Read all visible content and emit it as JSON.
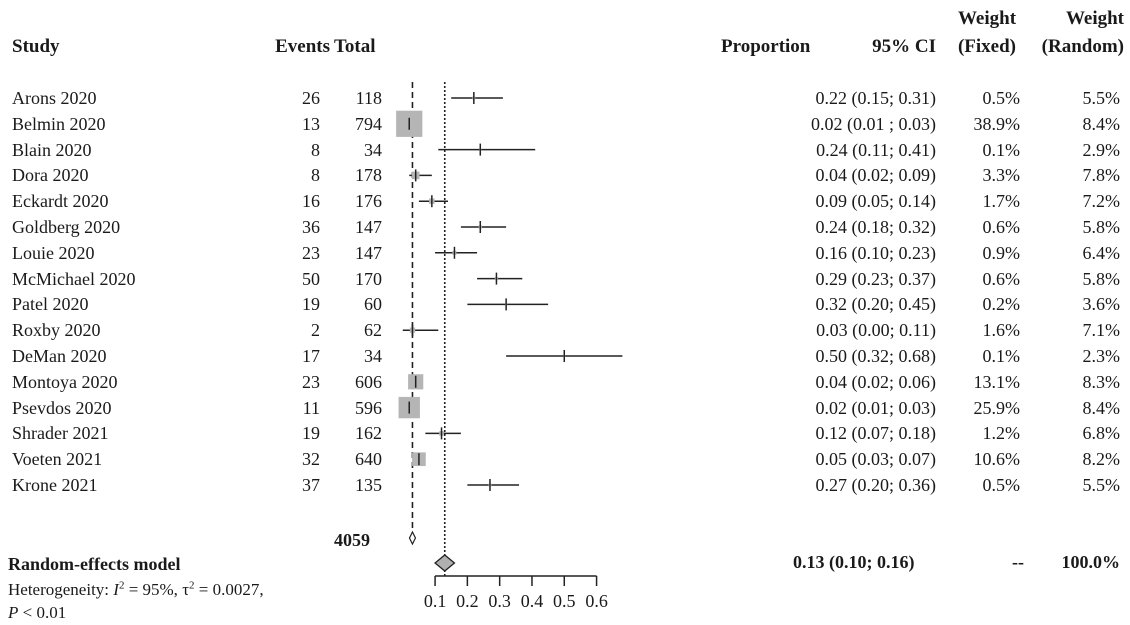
{
  "headers": {
    "study": "Study",
    "events": "Events",
    "total": "Total",
    "proportion": "Proportion",
    "ci": "95% CI",
    "weight_fixed_1": "Weight",
    "weight_fixed_2": "(Fixed)",
    "weight_random_1": "Weight",
    "weight_random_2": "(Random)"
  },
  "grand_total": "4059",
  "summary": {
    "label": "Random-effects model",
    "ci_text": "0.13 (0.10; 0.16)",
    "weight_fixed": "--",
    "weight_random": "100.0%",
    "heterogeneity_prefix": "Heterogeneity: ",
    "i2_symbol": "I",
    "i2_sup": "2",
    "i2_value": " = 95%, ",
    "tau_symbol": "τ",
    "tau_sup": "2",
    "tau_value": " = 0.0027,",
    "p_symbol": "P",
    "p_value": " < 0.01"
  },
  "chart_data": {
    "type": "forest",
    "axis": {
      "ticks": [
        "0.1",
        "0.2",
        "0.3",
        "0.4",
        "0.5",
        "0.6"
      ],
      "range": [
        0.1,
        0.6
      ]
    },
    "fixed_estimate": 0.03,
    "random_estimate": 0.13,
    "pooled": {
      "estimate": 0.13,
      "lower": 0.1,
      "upper": 0.16
    },
    "studies": [
      {
        "study": "Arons 2020",
        "events": "26",
        "total": "118",
        "ci_text": "0.22 (0.15; 0.31)",
        "wf": "0.5%",
        "wr": "5.5%",
        "est": 0.22,
        "lo": 0.15,
        "hi": 0.31,
        "wfn": 0.5
      },
      {
        "study": "Belmin 2020",
        "events": "13",
        "total": "794",
        "ci_text": "0.02 (0.01 ; 0.03)",
        "wf": "38.9%",
        "wr": "8.4%",
        "est": 0.02,
        "lo": 0.01,
        "hi": 0.03,
        "wfn": 38.9
      },
      {
        "study": "Blain 2020",
        "events": "8",
        "total": "34",
        "ci_text": "0.24 (0.11; 0.41)",
        "wf": "0.1%",
        "wr": "2.9%",
        "est": 0.24,
        "lo": 0.11,
        "hi": 0.41,
        "wfn": 0.1
      },
      {
        "study": "Dora 2020",
        "events": "8",
        "total": "178",
        "ci_text": "0.04 (0.02; 0.09)",
        "wf": "3.3%",
        "wr": "7.8%",
        "est": 0.04,
        "lo": 0.02,
        "hi": 0.09,
        "wfn": 3.3
      },
      {
        "study": "Eckardt 2020",
        "events": "16",
        "total": "176",
        "ci_text": "0.09 (0.05; 0.14)",
        "wf": "1.7%",
        "wr": "7.2%",
        "est": 0.09,
        "lo": 0.05,
        "hi": 0.14,
        "wfn": 1.7
      },
      {
        "study": "Goldberg 2020",
        "events": "36",
        "total": "147",
        "ci_text": "0.24 (0.18; 0.32)",
        "wf": "0.6%",
        "wr": "5.8%",
        "est": 0.24,
        "lo": 0.18,
        "hi": 0.32,
        "wfn": 0.6
      },
      {
        "study": "Louie 2020",
        "events": "23",
        "total": "147",
        "ci_text": "0.16 (0.10; 0.23)",
        "wf": "0.9%",
        "wr": "6.4%",
        "est": 0.16,
        "lo": 0.1,
        "hi": 0.23,
        "wfn": 0.9
      },
      {
        "study": "McMichael 2020",
        "events": "50",
        "total": "170",
        "ci_text": "0.29 (0.23; 0.37)",
        "wf": "0.6%",
        "wr": "5.8%",
        "est": 0.29,
        "lo": 0.23,
        "hi": 0.37,
        "wfn": 0.6
      },
      {
        "study": "Patel 2020",
        "events": "19",
        "total": "60",
        "ci_text": "0.32 (0.20; 0.45)",
        "wf": "0.2%",
        "wr": "3.6%",
        "est": 0.32,
        "lo": 0.2,
        "hi": 0.45,
        "wfn": 0.2
      },
      {
        "study": "Roxby 2020",
        "events": "2",
        "total": "62",
        "ci_text": "0.03 (0.00; 0.11)",
        "wf": "1.6%",
        "wr": "7.1%",
        "est": 0.03,
        "lo": 0.0,
        "hi": 0.11,
        "wfn": 1.6
      },
      {
        "study": "DeMan 2020",
        "events": "17",
        "total": "34",
        "ci_text": "0.50 (0.32; 0.68)",
        "wf": "0.1%",
        "wr": "2.3%",
        "est": 0.5,
        "lo": 0.32,
        "hi": 0.68,
        "wfn": 0.1
      },
      {
        "study": "Montoya 2020",
        "events": "23",
        "total": "606",
        "ci_text": "0.04 (0.02; 0.06)",
        "wf": "13.1%",
        "wr": "8.3%",
        "est": 0.04,
        "lo": 0.02,
        "hi": 0.06,
        "wfn": 13.1
      },
      {
        "study": "Psevdos 2020",
        "events": "11",
        "total": "596",
        "ci_text": "0.02 (0.01; 0.03)",
        "wf": "25.9%",
        "wr": "8.4%",
        "est": 0.02,
        "lo": 0.01,
        "hi": 0.03,
        "wfn": 25.9
      },
      {
        "study": "Shrader 2021",
        "events": "19",
        "total": "162",
        "ci_text": "0.12 (0.07; 0.18)",
        "wf": "1.2%",
        "wr": "6.8%",
        "est": 0.12,
        "lo": 0.07,
        "hi": 0.18,
        "wfn": 1.2
      },
      {
        "study": "Voeten 2021",
        "events": "32",
        "total": "640",
        "ci_text": "0.05 (0.03; 0.07)",
        "wf": "10.6%",
        "wr": "8.2%",
        "est": 0.05,
        "lo": 0.03,
        "hi": 0.07,
        "wfn": 10.6
      },
      {
        "study": "Krone 2021",
        "events": "37",
        "total": "135",
        "ci_text": "0.27 (0.20; 0.36)",
        "wf": "0.5%",
        "wr": "5.5%",
        "est": 0.27,
        "lo": 0.2,
        "hi": 0.36,
        "wfn": 0.5
      }
    ]
  }
}
